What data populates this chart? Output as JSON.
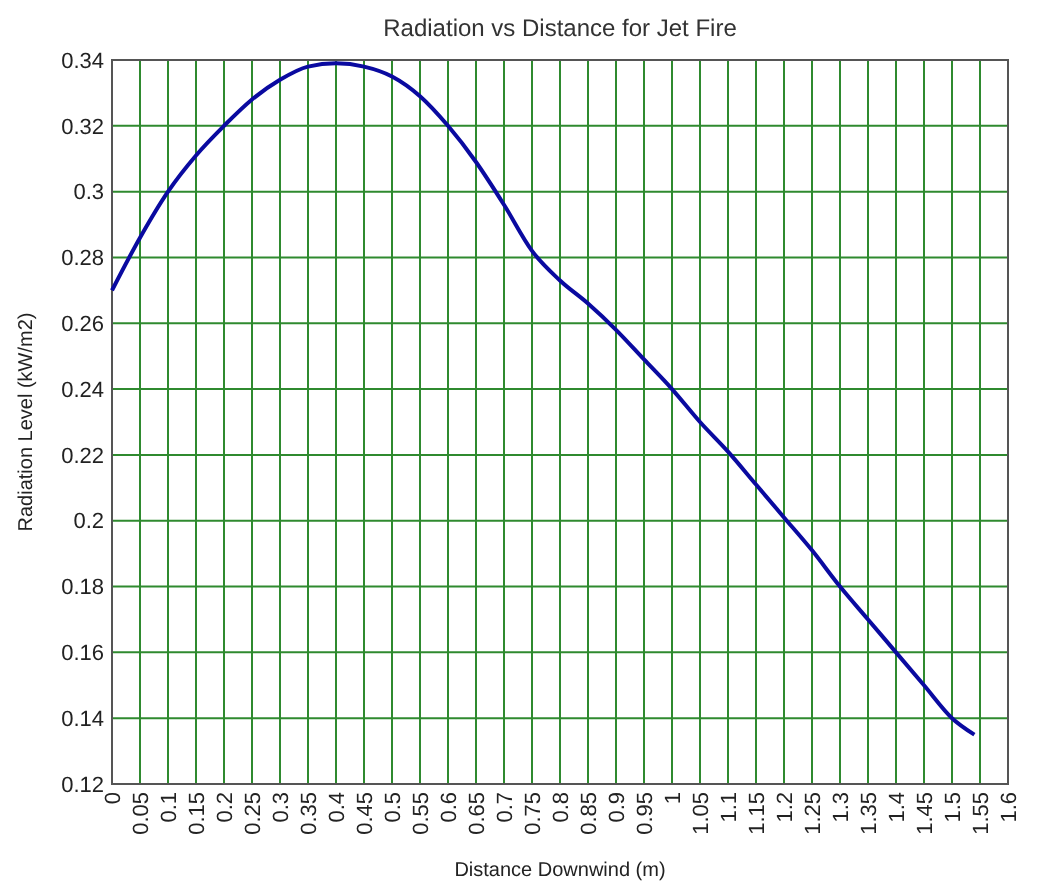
{
  "chart_data": {
    "type": "line",
    "title": "Radiation vs Distance for Jet Fire",
    "xlabel": "Distance Downwind (m)",
    "ylabel": "Radiation Level (kW/m2)",
    "x": [
      0,
      0.05,
      0.1,
      0.15,
      0.2,
      0.25,
      0.3,
      0.35,
      0.4,
      0.45,
      0.5,
      0.55,
      0.6,
      0.65,
      0.7,
      0.75,
      0.8,
      0.85,
      0.9,
      0.95,
      1.0,
      1.05,
      1.1,
      1.15,
      1.2,
      1.25,
      1.3,
      1.35,
      1.4,
      1.45,
      1.5,
      1.54
    ],
    "series": [
      {
        "color": "#0a0aa0",
        "values": [
          0.27,
          0.286,
          0.3,
          0.311,
          0.32,
          0.328,
          0.334,
          0.338,
          0.339,
          0.338,
          0.335,
          0.329,
          0.32,
          0.309,
          0.296,
          0.282,
          0.273,
          0.266,
          0.258,
          0.249,
          0.24,
          0.23,
          0.221,
          0.211,
          0.201,
          0.191,
          0.18,
          0.17,
          0.16,
          0.15,
          0.14,
          0.135
        ]
      }
    ],
    "xlim": [
      0,
      1.6
    ],
    "ylim": [
      0.12,
      0.34
    ],
    "xticks": [
      0,
      0.05,
      0.1,
      0.15,
      0.2,
      0.25,
      0.3,
      0.35,
      0.4,
      0.45,
      0.5,
      0.55,
      0.6,
      0.65,
      0.7,
      0.75,
      0.8,
      0.85,
      0.9,
      0.95,
      1,
      1.05,
      1.1,
      1.15,
      1.2,
      1.25,
      1.3,
      1.35,
      1.4,
      1.45,
      1.5,
      1.55,
      1.6
    ],
    "yticks": [
      0.12,
      0.14,
      0.16,
      0.18,
      0.2,
      0.22,
      0.24,
      0.26,
      0.28,
      0.3,
      0.32,
      0.34
    ],
    "grid": true,
    "marker": "none",
    "line_style": "solid"
  }
}
